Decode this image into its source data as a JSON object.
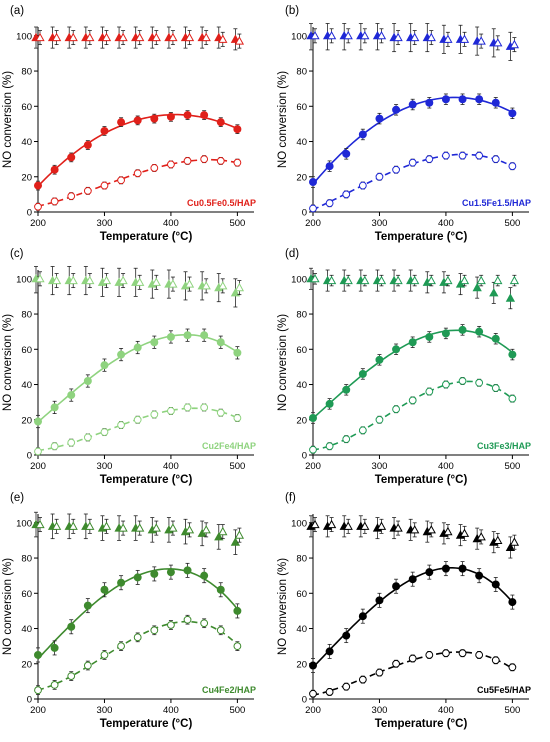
{
  "figure": {
    "colors": {
      "a": "#e0201a",
      "b": "#1f28d6",
      "c": "#8fd37f",
      "d": "#1f9a55",
      "e": "#3e8a2e",
      "f": "#000000"
    }
  },
  "chart_data": [
    {
      "id": "a",
      "type": "scatter",
      "panel_label": "(a)",
      "sample_label": "Cu0.5Fe0.5/HAP",
      "color": "#e0201a",
      "xlabel": "Temperature (°C)",
      "ylabel": "NO conversion (%)",
      "xlim": [
        200,
        525
      ],
      "ylim": [
        0,
        105
      ],
      "xticks": [
        200,
        300,
        400,
        500
      ],
      "yticks": [
        0,
        20,
        40,
        60,
        80,
        100
      ],
      "series": [
        {
          "marker": "filled-circle",
          "fit": "solid",
          "x": [
            200,
            225,
            250,
            275,
            300,
            325,
            350,
            375,
            400,
            425,
            450,
            475,
            500
          ],
          "y": [
            15,
            24,
            31,
            38,
            46,
            51,
            52,
            53,
            54,
            55,
            55,
            51,
            47
          ],
          "err": 2.5
        },
        {
          "marker": "open-circle",
          "fit": "dashed",
          "x": [
            200,
            225,
            250,
            275,
            300,
            325,
            350,
            375,
            400,
            425,
            450,
            475,
            500
          ],
          "y": [
            3,
            6,
            9,
            12,
            15,
            18,
            22,
            25,
            27,
            29,
            30,
            29,
            28
          ],
          "err": 2
        },
        {
          "marker": "filled-triangle",
          "x": [
            200,
            225,
            250,
            275,
            300,
            325,
            350,
            375,
            400,
            425,
            450,
            475,
            500
          ],
          "y": [
            99,
            99,
            99,
            99,
            99,
            99,
            99,
            99,
            99,
            99,
            99,
            99,
            98
          ],
          "err": 6
        },
        {
          "marker": "open-triangle",
          "x": [
            200,
            225,
            250,
            275,
            300,
            325,
            350,
            375,
            400,
            425,
            450,
            475,
            500
          ],
          "y": [
            99,
            99,
            99,
            99,
            99,
            99,
            99,
            99,
            99,
            99,
            99,
            98,
            97
          ],
          "err": 4
        }
      ]
    },
    {
      "id": "b",
      "type": "scatter",
      "panel_label": "(b)",
      "sample_label": "Cu1.5Fe1.5/HAP",
      "color": "#1f28d6",
      "xlabel": "Temperature (°C)",
      "ylabel": "NO conversion (%)",
      "xlim": [
        200,
        525
      ],
      "ylim": [
        0,
        105
      ],
      "xticks": [
        200,
        300,
        400,
        500
      ],
      "yticks": [
        0,
        20,
        40,
        60,
        80,
        100
      ],
      "series": [
        {
          "marker": "filled-circle",
          "fit": "solid",
          "x": [
            200,
            225,
            250,
            275,
            300,
            325,
            350,
            375,
            400,
            425,
            450,
            475,
            500
          ],
          "y": [
            17,
            26,
            33,
            44,
            53,
            58,
            61,
            62,
            64,
            64,
            64,
            62,
            56
          ],
          "err": 3
        },
        {
          "marker": "open-circle",
          "fit": "dashed",
          "x": [
            200,
            225,
            250,
            275,
            300,
            325,
            350,
            375,
            400,
            425,
            450,
            475,
            500
          ],
          "y": [
            2,
            5,
            10,
            15,
            20,
            24,
            28,
            30,
            32,
            32,
            32,
            30,
            26
          ],
          "err": 2
        },
        {
          "marker": "filled-triangle",
          "x": [
            200,
            225,
            250,
            275,
            300,
            325,
            350,
            375,
            400,
            425,
            450,
            475,
            500
          ],
          "y": [
            100,
            100,
            100,
            100,
            100,
            99,
            99,
            99,
            98,
            98,
            97,
            96,
            94
          ],
          "err": 8
        },
        {
          "marker": "open-triangle",
          "x": [
            200,
            225,
            250,
            275,
            300,
            325,
            350,
            375,
            400,
            425,
            450,
            475,
            500
          ],
          "y": [
            100,
            100,
            100,
            100,
            100,
            99,
            99,
            99,
            98,
            98,
            97,
            96,
            95
          ],
          "err": 4
        }
      ]
    },
    {
      "id": "c",
      "type": "scatter",
      "panel_label": "(c)",
      "sample_label": "Cu2Fe4/HAP",
      "color": "#8fd37f",
      "xlabel": "Temperature (°C)",
      "ylabel": "NO conversion (%)",
      "xlim": [
        200,
        525
      ],
      "ylim": [
        0,
        105
      ],
      "xticks": [
        200,
        300,
        400,
        500
      ],
      "yticks": [
        0,
        20,
        40,
        60,
        80,
        100
      ],
      "series": [
        {
          "marker": "filled-circle",
          "fit": "solid",
          "x": [
            200,
            225,
            250,
            275,
            300,
            325,
            350,
            375,
            400,
            425,
            450,
            475,
            500
          ],
          "y": [
            19,
            27,
            34,
            42,
            51,
            57,
            61,
            64,
            67,
            68,
            68,
            64,
            58
          ],
          "err": 3.5
        },
        {
          "marker": "open-circle",
          "fit": "dashed",
          "x": [
            200,
            225,
            250,
            275,
            300,
            325,
            350,
            375,
            400,
            425,
            450,
            475,
            500
          ],
          "y": [
            2,
            5,
            7,
            10,
            13,
            17,
            20,
            23,
            25,
            27,
            27,
            24,
            21
          ],
          "err": 2
        },
        {
          "marker": "filled-triangle",
          "x": [
            200,
            225,
            250,
            275,
            300,
            325,
            350,
            375,
            400,
            425,
            450,
            475,
            500
          ],
          "y": [
            100,
            99,
            99,
            99,
            98,
            98,
            98,
            97,
            97,
            96,
            96,
            95,
            92
          ],
          "err": 8
        },
        {
          "marker": "open-triangle",
          "x": [
            200,
            225,
            250,
            275,
            300,
            325,
            350,
            375,
            400,
            425,
            450,
            475,
            500
          ],
          "y": [
            100,
            99,
            99,
            99,
            99,
            99,
            98,
            98,
            97,
            97,
            96,
            96,
            95
          ],
          "err": 4
        }
      ]
    },
    {
      "id": "d",
      "type": "scatter",
      "panel_label": "(d)",
      "sample_label": "Cu3Fe3/HAP",
      "color": "#1f9a55",
      "xlabel": "Temperature (°C)",
      "ylabel": "NO conversion (%)",
      "xlim": [
        200,
        525
      ],
      "ylim": [
        0,
        105
      ],
      "xticks": [
        200,
        300,
        400,
        500
      ],
      "yticks": [
        0,
        20,
        40,
        60,
        80,
        100
      ],
      "series": [
        {
          "marker": "filled-circle",
          "fit": "solid",
          "x": [
            200,
            225,
            250,
            275,
            300,
            325,
            350,
            375,
            400,
            425,
            450,
            475,
            500
          ],
          "y": [
            21,
            29,
            37,
            46,
            54,
            60,
            64,
            67,
            69,
            71,
            70,
            66,
            57
          ],
          "err": 3
        },
        {
          "marker": "open-circle",
          "fit": "dashed",
          "x": [
            200,
            225,
            250,
            275,
            300,
            325,
            350,
            375,
            400,
            425,
            450,
            475,
            500
          ],
          "y": [
            3,
            5,
            9,
            14,
            20,
            26,
            31,
            36,
            40,
            42,
            41,
            38,
            32
          ],
          "err": 2
        },
        {
          "marker": "filled-triangle",
          "x": [
            200,
            225,
            250,
            275,
            300,
            325,
            350,
            375,
            400,
            425,
            450,
            475,
            500
          ],
          "y": [
            100,
            99,
            99,
            99,
            99,
            99,
            99,
            98,
            98,
            97,
            95,
            92,
            89
          ],
          "err": 6
        },
        {
          "marker": "open-triangle",
          "x": [
            200,
            225,
            250,
            275,
            300,
            325,
            350,
            375,
            400,
            425,
            450,
            475,
            500
          ],
          "y": [
            100,
            99,
            99,
            99,
            99,
            99,
            99,
            99,
            99,
            99,
            99,
            99,
            99
          ],
          "err": 3
        }
      ]
    },
    {
      "id": "e",
      "type": "scatter",
      "panel_label": "(e)",
      "sample_label": "Cu4Fe2/HAP",
      "color": "#3e8a2e",
      "xlabel": "Temperature (°C)",
      "ylabel": "NO conversion (%)",
      "xlim": [
        200,
        525
      ],
      "ylim": [
        0,
        105
      ],
      "xticks": [
        200,
        300,
        400,
        500
      ],
      "yticks": [
        0,
        20,
        40,
        60,
        80,
        100
      ],
      "series": [
        {
          "marker": "filled-circle",
          "fit": "solid",
          "x": [
            200,
            225,
            250,
            275,
            300,
            325,
            350,
            375,
            400,
            425,
            450,
            475,
            500
          ],
          "y": [
            25,
            29,
            41,
            53,
            62,
            66,
            69,
            71,
            72,
            73,
            70,
            62,
            50
          ],
          "err": 4
        },
        {
          "marker": "open-circle",
          "fit": "dashed",
          "x": [
            200,
            225,
            250,
            275,
            300,
            325,
            350,
            375,
            400,
            425,
            450,
            475,
            500
          ],
          "y": [
            5,
            8,
            13,
            19,
            25,
            30,
            35,
            39,
            42,
            45,
            43,
            39,
            30
          ],
          "err": 2.5
        },
        {
          "marker": "filled-triangle",
          "x": [
            200,
            225,
            250,
            275,
            300,
            325,
            350,
            375,
            400,
            425,
            450,
            475,
            500
          ],
          "y": [
            99,
            98,
            98,
            98,
            97,
            97,
            97,
            96,
            96,
            95,
            94,
            92,
            89
          ],
          "err": 7
        },
        {
          "marker": "open-triangle",
          "x": [
            200,
            225,
            250,
            275,
            300,
            325,
            350,
            375,
            400,
            425,
            450,
            475,
            500
          ],
          "y": [
            99,
            98,
            98,
            98,
            98,
            97,
            97,
            97,
            97,
            96,
            96,
            95,
            93
          ],
          "err": 4
        }
      ]
    },
    {
      "id": "f",
      "type": "scatter",
      "panel_label": "(f)",
      "sample_label": "Cu5Fe5/HAP",
      "color": "#000000",
      "xlabel": "Temperature (°C)",
      "ylabel": "NO conversion (%)",
      "xlim": [
        200,
        525
      ],
      "ylim": [
        0,
        105
      ],
      "xticks": [
        200,
        300,
        400,
        500
      ],
      "yticks": [
        0,
        20,
        40,
        60,
        80,
        100
      ],
      "series": [
        {
          "marker": "filled-circle",
          "fit": "solid",
          "x": [
            200,
            225,
            250,
            275,
            300,
            325,
            350,
            375,
            400,
            425,
            450,
            475,
            500
          ],
          "y": [
            19,
            27,
            36,
            47,
            56,
            64,
            68,
            72,
            74,
            74,
            70,
            65,
            55
          ],
          "err": 4
        },
        {
          "marker": "open-circle",
          "fit": "dashed",
          "x": [
            200,
            225,
            250,
            275,
            300,
            325,
            350,
            375,
            400,
            425,
            450,
            475,
            500
          ],
          "y": [
            3,
            4,
            7,
            11,
            15,
            20,
            23,
            25,
            26,
            26,
            25,
            22,
            18
          ],
          "err": 2
        },
        {
          "marker": "filled-triangle",
          "x": [
            200,
            225,
            250,
            275,
            300,
            325,
            350,
            375,
            400,
            425,
            450,
            475,
            500
          ],
          "y": [
            98,
            98,
            98,
            98,
            97,
            97,
            96,
            95,
            94,
            93,
            91,
            89,
            86
          ],
          "err": 6
        },
        {
          "marker": "open-triangle",
          "x": [
            200,
            225,
            250,
            275,
            300,
            325,
            350,
            375,
            400,
            425,
            450,
            475,
            500
          ],
          "y": [
            99,
            99,
            98,
            98,
            98,
            97,
            96,
            96,
            95,
            94,
            92,
            90,
            89
          ],
          "err": 4
        }
      ]
    }
  ]
}
